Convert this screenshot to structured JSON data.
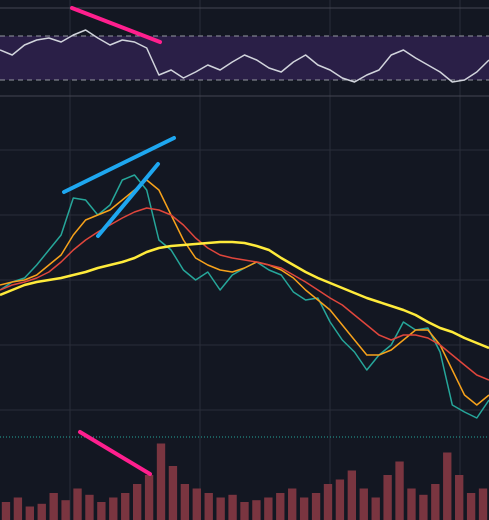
{
  "chart_data": [
    {
      "type": "line",
      "x": [
        0,
        1,
        2,
        3,
        4,
        5,
        6,
        7,
        8,
        9,
        10,
        11,
        12,
        13,
        14,
        15,
        16,
        17,
        18,
        19,
        20,
        21,
        22,
        23,
        24,
        25,
        26,
        27,
        28,
        29,
        30,
        31,
        32,
        33,
        34,
        35,
        36,
        37,
        38,
        39,
        40
      ],
      "xlim": [
        0,
        40
      ],
      "ylim": [
        0,
        320
      ],
      "series": [
        {
          "color": "#26a69a",
          "values": [
            150,
            158,
            162,
            175,
            190,
            205,
            242,
            240,
            225,
            235,
            260,
            265,
            250,
            200,
            190,
            170,
            160,
            168,
            150,
            165,
            172,
            178,
            170,
            165,
            148,
            140,
            142,
            118,
            100,
            88,
            70,
            85,
            95,
            118,
            110,
            112,
            88,
            35,
            28,
            22,
            40
          ]
        },
        {
          "color": "#f7a21b",
          "values": [
            155,
            158,
            160,
            165,
            175,
            185,
            205,
            220,
            225,
            230,
            240,
            250,
            260,
            250,
            225,
            200,
            182,
            175,
            170,
            168,
            172,
            178,
            175,
            170,
            162,
            150,
            140,
            130,
            115,
            100,
            85,
            85,
            90,
            100,
            110,
            110,
            95,
            70,
            45,
            35,
            45
          ]
        },
        {
          "color": "#e0463c",
          "values": [
            150,
            155,
            158,
            162,
            168,
            178,
            190,
            200,
            208,
            215,
            222,
            228,
            232,
            230,
            225,
            215,
            202,
            192,
            185,
            182,
            180,
            178,
            175,
            172,
            165,
            158,
            150,
            142,
            135,
            125,
            115,
            105,
            100,
            105,
            105,
            102,
            95,
            85,
            75,
            65,
            60
          ]
        },
        {
          "color": "#ffeb3b",
          "values": [
            145,
            150,
            155,
            158,
            160,
            162,
            165,
            168,
            172,
            175,
            178,
            182,
            188,
            192,
            194,
            195,
            196,
            197,
            198,
            198,
            197,
            194,
            190,
            182,
            175,
            168,
            162,
            157,
            152,
            147,
            142,
            138,
            134,
            130,
            125,
            118,
            112,
            108,
            102,
            97,
            92
          ]
        }
      ]
    },
    {
      "type": "line",
      "x": [
        0,
        1,
        2,
        3,
        4,
        5,
        6,
        7,
        8,
        9,
        10,
        11,
        12,
        13,
        14,
        15,
        16,
        17,
        18,
        19,
        20,
        21,
        22,
        23,
        24,
        25,
        26,
        27,
        28,
        29,
        30,
        31,
        32,
        33,
        34,
        35,
        36,
        37,
        38,
        39,
        40
      ],
      "xlim": [
        0,
        40
      ],
      "ylim": [
        0,
        70
      ],
      "series": [
        {
          "color": "#d1d4dc",
          "values": [
            45,
            40,
            50,
            55,
            57,
            53,
            60,
            65,
            57,
            50,
            55,
            53,
            47,
            20,
            25,
            17,
            23,
            30,
            25,
            33,
            40,
            35,
            27,
            23,
            33,
            40,
            30,
            25,
            17,
            13,
            20,
            25,
            40,
            45,
            37,
            30,
            23,
            13,
            15,
            23,
            35
          ]
        }
      ]
    },
    {
      "type": "bar",
      "x": [
        0,
        1,
        2,
        3,
        4,
        5,
        6,
        7,
        8,
        9,
        10,
        11,
        12,
        13,
        14,
        15,
        16,
        17,
        18,
        19,
        20,
        21,
        22,
        23,
        24,
        25,
        26,
        27,
        28,
        29,
        30,
        31,
        32,
        33,
        34,
        35,
        36,
        37,
        38,
        39,
        40
      ],
      "xlim": [
        0,
        40
      ],
      "ylim": [
        0,
        100
      ],
      "color": "#7a3540",
      "values": [
        20,
        25,
        15,
        18,
        30,
        22,
        35,
        28,
        20,
        25,
        30,
        40,
        50,
        85,
        60,
        40,
        35,
        30,
        25,
        28,
        20,
        22,
        25,
        30,
        35,
        25,
        30,
        40,
        45,
        55,
        35,
        25,
        50,
        65,
        35,
        28,
        40,
        75,
        50,
        30,
        35
      ]
    }
  ]
}
